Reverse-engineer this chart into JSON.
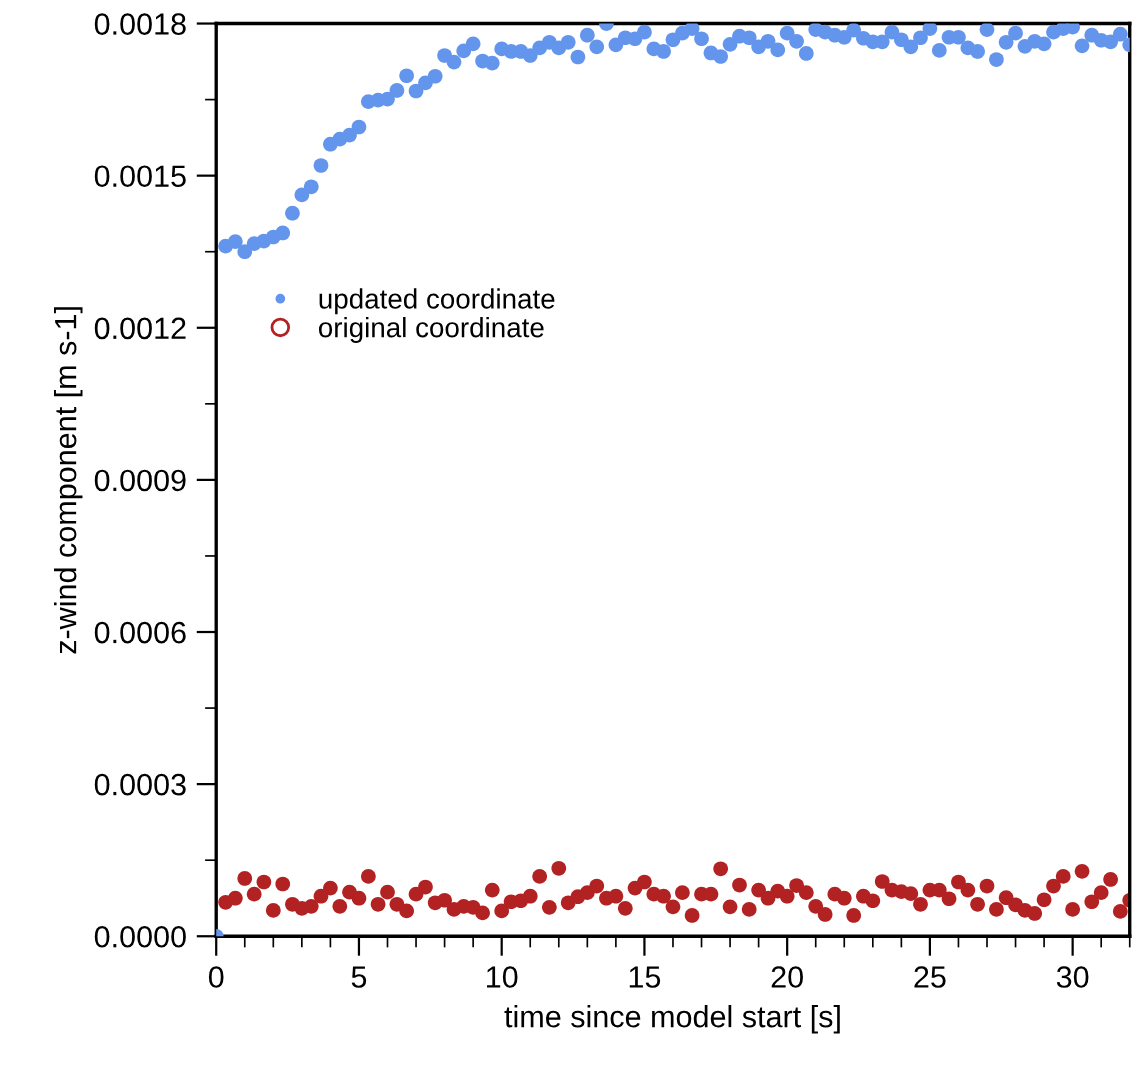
{
  "chart_data": {
    "type": "scatter",
    "xlabel": "time since model start [s]",
    "ylabel": "z-wind component [m s-1]",
    "xlim": [
      0,
      32
    ],
    "xticks": [
      0,
      5,
      10,
      15,
      20,
      25,
      30
    ],
    "ylim": [
      0,
      0.0018
    ],
    "yticks": [
      {
        "value": 0,
        "label": "0.0000"
      },
      0.0003,
      0.0006,
      0.0009,
      0.0012,
      0.0015,
      0.0018
    ],
    "grid": false,
    "legend": "left",
    "marker": "circle",
    "series": [
      {
        "name": "updated coordinate",
        "color": "#6495ed",
        "x": [
          0,
          0.33,
          0.67,
          1,
          1.33,
          1.67,
          2,
          2.33,
          2.67,
          3,
          3.33,
          3.67,
          4,
          4.33,
          4.67,
          5,
          5.33,
          5.67,
          6,
          6.33,
          6.67,
          7,
          7.33,
          7.67,
          8,
          8.33,
          8.67,
          9,
          9.33,
          9.67,
          10,
          10.33,
          10.67,
          11,
          11.33,
          11.67,
          12,
          12.33,
          12.67,
          13,
          13.33,
          13.67,
          14,
          14.33,
          14.67,
          15,
          15.33,
          15.67,
          16,
          16.33,
          16.67,
          17,
          17.33,
          17.67,
          18,
          18.33,
          18.67,
          19,
          19.33,
          19.67,
          20,
          20.33,
          20.67,
          21,
          21.33,
          21.67,
          22,
          22.33,
          22.67,
          23,
          23.33,
          23.67,
          24,
          24.33,
          24.67,
          25,
          25.33,
          25.67,
          26,
          26.33,
          26.67,
          27,
          27.33,
          27.67,
          28,
          28.33,
          28.67,
          29,
          29.33,
          29.67,
          30,
          30.33,
          30.67,
          31,
          31.33,
          31.67,
          32
        ],
        "values": [
          0,
          0.001361,
          0.00137,
          0.00135,
          0.001366,
          0.001371,
          0.001379,
          0.001387,
          0.001426,
          0.001462,
          0.001478,
          0.00152,
          0.001562,
          0.001572,
          0.00158,
          0.001596,
          0.001646,
          0.001649,
          0.001651,
          0.001668,
          0.001697,
          0.001667,
          0.001683,
          0.001696,
          0.001737,
          0.001724,
          0.001746,
          0.00176,
          0.001726,
          0.001722,
          0.00175,
          0.001745,
          0.001745,
          0.001737,
          0.001752,
          0.001763,
          0.001752,
          0.001763,
          0.001734,
          0.001777,
          0.001754,
          0.0018,
          0.001758,
          0.001772,
          0.00177,
          0.001783,
          0.00175,
          0.001745,
          0.001768,
          0.001781,
          0.00179,
          0.00177,
          0.001742,
          0.001735,
          0.001759,
          0.001775,
          0.001772,
          0.001754,
          0.001765,
          0.001748,
          0.001781,
          0.001765,
          0.001741,
          0.001788,
          0.001783,
          0.001777,
          0.001773,
          0.001787,
          0.001771,
          0.001764,
          0.001764,
          0.001783,
          0.001768,
          0.001754,
          0.001772,
          0.00179,
          0.001747,
          0.001773,
          0.001773,
          0.001752,
          0.001745,
          0.001788,
          0.001729,
          0.001763,
          0.001781,
          0.001755,
          0.001765,
          0.00176,
          0.001783,
          0.00179,
          0.001793,
          0.001756,
          0.001777,
          0.001767,
          0.001764,
          0.001779,
          0.001758
        ]
      },
      {
        "name": "original coordinate",
        "color": "#b22222",
        "x": [
          0.33,
          0.67,
          1,
          1.33,
          1.67,
          2,
          2.33,
          2.67,
          3,
          3.33,
          3.67,
          4,
          4.33,
          4.67,
          5,
          5.33,
          5.67,
          6,
          6.33,
          6.67,
          7,
          7.33,
          7.67,
          8,
          8.33,
          8.67,
          9,
          9.33,
          9.67,
          10,
          10.33,
          10.67,
          11,
          11.33,
          11.67,
          12,
          12.33,
          12.67,
          13,
          13.33,
          13.67,
          14,
          14.33,
          14.67,
          15,
          15.33,
          15.67,
          16,
          16.33,
          16.67,
          17,
          17.33,
          17.67,
          18,
          18.33,
          18.67,
          19,
          19.33,
          19.67,
          20,
          20.33,
          20.67,
          21,
          21.33,
          21.67,
          22,
          22.33,
          22.67,
          23,
          23.33,
          23.67,
          24,
          24.33,
          24.67,
          25,
          25.33,
          25.67,
          26,
          26.33,
          26.67,
          27,
          27.33,
          27.67,
          28,
          28.33,
          28.67,
          29,
          29.33,
          29.67,
          30,
          30.33,
          30.67,
          31,
          31.33,
          31.67,
          32
        ],
        "values": [
          6.7e-05,
          7.5e-05,
          0.000114,
          8.3e-05,
          0.000107,
          5.1e-05,
          0.000103,
          6.3e-05,
          5.5e-05,
          5.9e-05,
          7.9e-05,
          9.5e-05,
          5.9e-05,
          8.7e-05,
          7.5e-05,
          0.000118,
          6.3e-05,
          8.7e-05,
          6.3e-05,
          5e-05,
          8.3e-05,
          9.7e-05,
          6.6e-05,
          7.1e-05,
          5.3e-05,
          5.9e-05,
          5.7e-05,
          4.6e-05,
          9.1e-05,
          5e-05,
          6.8e-05,
          7e-05,
          7.9e-05,
          0.000118,
          5.7e-05,
          0.000134,
          6.6e-05,
          7.8e-05,
          8.6e-05,
          9.9e-05,
          7.5e-05,
          7.9e-05,
          5.5e-05,
          9.5e-05,
          0.000107,
          8.3e-05,
          7.9e-05,
          5.8e-05,
          8.6e-05,
          4.1e-05,
          8.3e-05,
          8.3e-05,
          0.000133,
          5.8e-05,
          0.000101,
          5.3e-05,
          9.1e-05,
          7.5e-05,
          8.9e-05,
          7.9e-05,
          0.0001,
          8.6e-05,
          5.9e-05,
          4.3e-05,
          8.3e-05,
          7.5e-05,
          4.1e-05,
          7.9e-05,
          7e-05,
          0.000108,
          9.1e-05,
          8.8e-05,
          8.4e-05,
          6.3e-05,
          9.1e-05,
          9.1e-05,
          7.4e-05,
          0.000107,
          9.1e-05,
          6.3e-05,
          9.9e-05,
          5.3e-05,
          7.6e-05,
          6.2e-05,
          5.1e-05,
          4.5e-05,
          7.2e-05,
          9.9e-05,
          0.000118,
          5.3e-05,
          0.000128,
          6.8e-05,
          8.6e-05,
          0.000112,
          4.9e-05,
          7.1e-05
        ]
      }
    ]
  }
}
